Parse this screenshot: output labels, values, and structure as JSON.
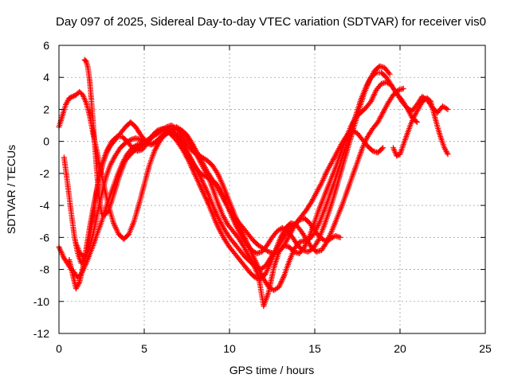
{
  "chart_data": {
    "type": "scatter",
    "title": "Day 097 of 2025, Sidereal Day-to-day VTEC variation (SDTVAR) for receiver vis0",
    "xlabel": "GPS time / hours",
    "ylabel": "SDTVAR / TECUs",
    "xlim": [
      0,
      25
    ],
    "ylim": [
      -12,
      6
    ],
    "xticks": [
      "0",
      "5",
      "10",
      "15",
      "20",
      "25"
    ],
    "yticks": [
      "-12",
      "-10",
      "-8",
      "-6",
      "-4",
      "-2",
      "0",
      "2",
      "4",
      "6"
    ],
    "grid": true,
    "marker": "plus",
    "series_color": "#ff0000",
    "series": [
      {
        "x": [
          0.0,
          0.3,
          0.6,
          0.9,
          1.1,
          1.3,
          1.6,
          1.9,
          2.2,
          2.5,
          2.8,
          3.1,
          3.4,
          3.7,
          4.0,
          4.3,
          4.6,
          4.9,
          5.2,
          5.5,
          5.8,
          6.1,
          6.4,
          6.7,
          7.0,
          7.3,
          7.6,
          7.9,
          8.2,
          8.5,
          8.8,
          9.1,
          9.4,
          9.7,
          10.0,
          10.3,
          10.6,
          10.9,
          11.2,
          11.5,
          11.8,
          12.1,
          12.4,
          12.7,
          13.0,
          13.3,
          13.6,
          13.9,
          14.2,
          14.5,
          14.8,
          15.1,
          15.4,
          15.7,
          16.0,
          16.3,
          16.6,
          16.9,
          17.2,
          17.5,
          17.8,
          18.1,
          18.4,
          18.7,
          19.0
        ],
        "y": [
          -6.6,
          -7.3,
          -7.8,
          -8.2,
          -8.5,
          -8.3,
          -7.6,
          -6.8,
          -5.9,
          -5.0,
          -4.0,
          -3.1,
          -2.2,
          -1.4,
          -0.8,
          -0.4,
          -0.2,
          -0.1,
          0.1,
          0.3,
          0.5,
          0.7,
          0.8,
          0.6,
          0.2,
          -0.3,
          -0.8,
          -1.4,
          -2.0,
          -2.7,
          -3.4,
          -4.2,
          -4.9,
          -5.5,
          -6.0,
          -6.4,
          -6.8,
          -7.2,
          -7.5,
          -7.8,
          -8.0,
          -7.8,
          -7.3,
          -6.8,
          -6.3,
          -5.8,
          -5.4,
          -5.1,
          -4.7,
          -4.3,
          -3.8,
          -3.2,
          -2.6,
          -1.9,
          -1.3,
          -0.7,
          -0.1,
          0.4,
          0.7,
          0.5,
          0.1,
          -0.3,
          -0.6,
          -0.7,
          -0.4
        ]
      },
      {
        "x": [
          0.0,
          0.2,
          0.4,
          0.6,
          0.8,
          1.0,
          1.2,
          1.4,
          1.6,
          1.8,
          2.0,
          2.3,
          2.6,
          2.9,
          3.2,
          3.5,
          3.8,
          4.1,
          4.4,
          4.7,
          5.0,
          5.3,
          5.6,
          5.9,
          6.2,
          6.5,
          6.8,
          7.1,
          7.4,
          7.7,
          8.0,
          8.3,
          8.6,
          8.9,
          9.2,
          9.5,
          9.8,
          10.1,
          10.4,
          10.7,
          11.0,
          11.3,
          11.6,
          11.9,
          12.2,
          12.5,
          12.8,
          13.1,
          13.4,
          13.7,
          14.0,
          14.3,
          14.6,
          14.9,
          15.2,
          15.5,
          15.8,
          16.1,
          16.4,
          16.7,
          17.0,
          17.3,
          17.6,
          17.9,
          18.2,
          18.5,
          18.8,
          19.1,
          19.4
        ],
        "y": [
          0.9,
          1.6,
          2.3,
          2.7,
          2.8,
          2.9,
          3.1,
          2.9,
          2.4,
          1.6,
          0.5,
          -1.0,
          -2.6,
          -4.0,
          -5.1,
          -5.8,
          -6.1,
          -5.8,
          -5.0,
          -3.9,
          -2.7,
          -1.5,
          -0.6,
          0.0,
          0.4,
          0.6,
          0.5,
          0.1,
          -0.5,
          -1.1,
          -1.6,
          -2.0,
          -2.2,
          -2.4,
          -2.6,
          -3.1,
          -3.8,
          -4.6,
          -5.3,
          -5.9,
          -6.4,
          -6.8,
          -7.0,
          -6.9,
          -6.5,
          -6.0,
          -5.6,
          -5.4,
          -5.6,
          -6.0,
          -6.5,
          -6.8,
          -6.9,
          -6.7,
          -6.2,
          -5.4,
          -4.5,
          -3.5,
          -2.4,
          -1.3,
          -0.2,
          0.9,
          2.0,
          3.0,
          3.8,
          4.4,
          4.7,
          4.6,
          4.2
        ]
      },
      {
        "x": [
          0.3,
          0.5,
          0.7,
          0.9,
          1.1,
          1.3,
          1.5,
          1.7,
          1.9,
          2.1,
          2.3,
          2.5,
          2.8,
          3.1,
          3.4,
          3.7,
          4.0,
          4.3,
          4.6,
          4.9,
          5.2,
          5.5,
          5.8,
          6.1,
          6.4,
          6.7,
          7.0,
          7.3,
          7.6,
          7.9,
          8.2,
          8.5,
          8.8,
          9.1,
          9.4,
          9.7,
          10.0,
          10.3,
          10.6,
          10.9,
          11.2,
          11.5,
          11.8,
          12.1,
          12.4,
          12.7,
          13.0,
          13.3,
          13.6,
          13.9,
          14.2,
          14.5,
          14.8,
          15.1,
          15.4,
          15.7,
          16.0,
          16.3,
          16.6,
          16.9,
          17.2,
          17.5,
          17.8,
          18.1,
          18.4,
          18.7,
          19.0,
          19.3,
          19.6,
          19.9,
          20.2
        ],
        "y": [
          -1.0,
          -2.6,
          -4.3,
          -5.9,
          -7.0,
          -7.6,
          -7.4,
          -6.6,
          -5.4,
          -4.0,
          -2.6,
          -1.5,
          -0.6,
          0.0,
          0.3,
          0.3,
          0.0,
          -0.4,
          -0.6,
          -0.5,
          -0.1,
          0.4,
          0.7,
          0.8,
          0.6,
          0.3,
          -0.1,
          -0.6,
          -1.2,
          -1.9,
          -2.6,
          -3.3,
          -4.0,
          -4.8,
          -5.5,
          -6.1,
          -6.6,
          -7.0,
          -7.4,
          -7.8,
          -8.2,
          -8.5,
          -8.6,
          -8.3,
          -7.6,
          -6.8,
          -6.0,
          -5.4,
          -5.1,
          -5.2,
          -5.6,
          -6.1,
          -6.6,
          -6.9,
          -6.8,
          -6.3,
          -5.6,
          -4.8,
          -4.0,
          -3.1,
          -2.2,
          -1.3,
          -0.4,
          0.3,
          0.8,
          1.2,
          1.8,
          2.4,
          2.9,
          3.2,
          3.3
        ]
      },
      {
        "x": [
          1.5,
          1.6,
          1.7,
          1.8,
          1.9,
          2.0,
          2.1,
          2.2,
          2.3,
          2.4,
          2.5,
          2.7,
          2.9,
          3.1,
          3.3,
          3.5,
          3.7,
          3.9,
          4.2,
          4.5,
          4.8,
          5.1,
          5.4,
          5.7,
          6.0,
          6.3,
          6.6,
          6.9,
          7.2,
          7.5,
          7.8,
          8.1,
          8.4,
          8.7,
          9.0,
          9.3,
          9.6,
          9.9,
          10.2,
          10.5,
          10.8,
          11.1,
          11.4,
          11.7,
          12.0,
          12.3,
          12.6,
          12.9,
          13.2,
          13.5,
          13.8,
          14.1,
          14.4,
          14.7,
          15.0,
          15.3,
          15.6,
          15.9,
          16.2,
          16.5,
          16.8,
          17.1,
          17.4,
          17.7,
          18.0,
          18.3,
          18.6,
          18.9,
          19.2,
          19.5,
          19.8,
          20.1,
          20.4,
          20.7,
          21.0
        ],
        "y": [
          5.1,
          5.0,
          4.6,
          3.8,
          2.6,
          1.2,
          -0.2,
          -1.6,
          -2.9,
          -3.9,
          -4.5,
          -4.6,
          -4.3,
          -3.7,
          -3.0,
          -2.3,
          -1.7,
          -1.2,
          -0.8,
          -0.5,
          -0.3,
          -0.1,
          0.2,
          0.5,
          0.7,
          0.9,
          1.0,
          0.8,
          0.3,
          -0.2,
          -0.6,
          -0.8,
          -1.0,
          -1.2,
          -1.5,
          -2.0,
          -2.7,
          -3.5,
          -4.3,
          -5.1,
          -5.8,
          -6.5,
          -7.2,
          -7.9,
          -8.6,
          -9.1,
          -9.3,
          -9.1,
          -8.4,
          -7.5,
          -6.7,
          -6.3,
          -6.2,
          -6.1,
          -5.7,
          -5.0,
          -4.2,
          -3.3,
          -2.4,
          -1.4,
          -0.4,
          0.6,
          1.6,
          2.6,
          3.4,
          4.0,
          4.3,
          4.3,
          4.0,
          3.5,
          3.0,
          2.6,
          2.1,
          1.5,
          1.2
        ]
      },
      {
        "x": [
          0.6,
          0.8,
          1.0,
          1.2,
          1.4,
          1.6,
          1.8,
          2.0,
          2.2,
          2.4,
          2.6,
          2.8,
          3.0,
          3.3,
          3.6,
          3.9,
          4.2,
          4.5,
          4.8,
          5.1,
          5.4,
          5.7,
          6.0,
          6.3,
          6.6,
          6.9,
          7.2,
          7.5,
          7.8,
          8.1,
          8.4,
          8.7,
          9.0,
          9.3,
          9.6,
          9.9,
          10.2,
          10.5,
          10.8,
          11.1,
          11.4,
          11.7,
          12.0,
          12.3,
          12.6,
          12.9,
          13.2,
          13.5,
          13.8,
          14.1,
          14.4,
          14.7,
          15.0,
          15.3,
          15.6,
          15.9,
          16.2,
          16.5,
          16.8,
          17.1,
          17.4,
          17.7,
          18.0,
          18.3,
          18.6,
          18.9,
          19.2,
          19.5,
          19.8,
          20.1,
          20.4,
          20.7,
          21.0,
          21.3,
          21.6,
          21.9,
          22.2,
          22.5,
          22.8
        ],
        "y": [
          -7.4,
          -8.3,
          -9.2,
          -8.8,
          -7.9,
          -6.7,
          -5.4,
          -4.2,
          -3.1,
          -2.1,
          -1.3,
          -0.7,
          -0.3,
          0.1,
          0.5,
          0.9,
          1.2,
          0.9,
          0.4,
          0.0,
          -0.2,
          -0.1,
          0.2,
          0.5,
          0.7,
          0.8,
          0.6,
          0.2,
          -0.3,
          -0.9,
          -1.5,
          -2.1,
          -2.9,
          -3.8,
          -4.6,
          -5.2,
          -5.6,
          -6.0,
          -6.5,
          -7.1,
          -7.7,
          -8.4,
          -10.3,
          -9.4,
          -7.9,
          -6.9,
          -6.5,
          -6.6,
          -6.9,
          -7.0,
          -6.6,
          -5.9,
          -5.0,
          -4.1,
          -3.3,
          -2.5,
          -1.7,
          -0.8,
          0.1,
          0.9,
          1.5,
          1.8,
          2.1,
          2.5,
          3.2,
          3.6,
          3.7,
          3.5,
          3.0,
          2.5,
          2.1,
          1.9,
          2.3,
          2.8,
          2.6,
          2.1,
          1.8,
          2.2,
          2.0
        ]
      },
      {
        "x": [
          1.0,
          1.2,
          1.4,
          1.6,
          1.8,
          2.0,
          2.2,
          2.4,
          2.6,
          2.8,
          3.0,
          3.3,
          3.6,
          3.9,
          4.2,
          4.5,
          4.8,
          5.1,
          5.4,
          5.7,
          6.0,
          6.3,
          6.6,
          6.9,
          7.2,
          7.5,
          7.8,
          8.1,
          8.4,
          8.7,
          9.0,
          9.3,
          9.6,
          9.9,
          10.2,
          10.5,
          10.8,
          11.1,
          11.4,
          11.7,
          12.0,
          12.3,
          12.6,
          12.9,
          13.2,
          13.5,
          13.8,
          14.1,
          14.4,
          14.7,
          15.0,
          15.3,
          15.6,
          15.9,
          16.2,
          16.5
        ],
        "y": [
          -6.4,
          -6.9,
          -7.2,
          -7.1,
          -6.6,
          -5.8,
          -4.8,
          -3.8,
          -2.9,
          -2.1,
          -1.5,
          -0.9,
          -0.4,
          -0.1,
          0.1,
          0.2,
          0.1,
          -0.1,
          -0.2,
          0.0,
          0.3,
          0.6,
          0.8,
          0.9,
          0.7,
          0.4,
          -0.1,
          -0.7,
          -1.3,
          -1.9,
          -2.4,
          -2.9,
          -3.5,
          -4.1,
          -4.6,
          -5.0,
          -5.4,
          -5.8,
          -6.2,
          -6.5,
          -6.7,
          -6.9,
          -7.0,
          -6.9,
          -6.5,
          -5.9,
          -5.3,
          -4.9,
          -4.8,
          -5.1,
          -5.6,
          -6.0,
          -6.2,
          -6.1,
          -5.9,
          -6.0
        ]
      },
      {
        "x": [
          19.6,
          19.8,
          20.0,
          20.2,
          20.4,
          20.6,
          20.8,
          21.0,
          21.2,
          21.4,
          21.6,
          21.8,
          22.0,
          22.2,
          22.4,
          22.6,
          22.8
        ],
        "y": [
          -0.4,
          -0.9,
          -0.8,
          -0.2,
          0.4,
          1.0,
          1.5,
          1.9,
          2.3,
          2.6,
          2.7,
          2.5,
          1.7,
          0.9,
          0.2,
          -0.4,
          -0.8
        ]
      }
    ]
  }
}
